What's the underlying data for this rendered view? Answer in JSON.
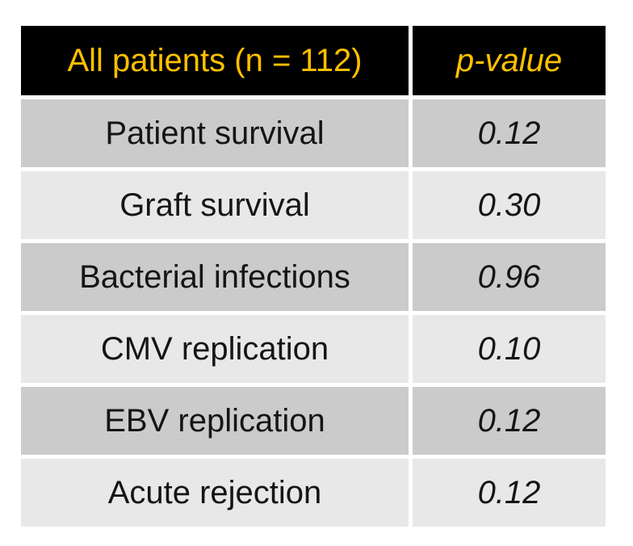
{
  "table": {
    "header": {
      "col1": "All patients (n = 112)",
      "col2": "p-value"
    },
    "rows": [
      {
        "label": "Patient survival",
        "p_value": "0.12"
      },
      {
        "label": "Graft survival",
        "p_value": "0.30"
      },
      {
        "label": "Bacterial infections",
        "p_value": "0.96"
      },
      {
        "label": "CMV replication",
        "p_value": "0.10"
      },
      {
        "label": "EBV replication",
        "p_value": "0.12"
      },
      {
        "label": "Acute rejection",
        "p_value": "0.12"
      }
    ]
  },
  "colors": {
    "header_bg": "#000000",
    "header_text": "#ffc000",
    "row_dark": "#cbcbcb",
    "row_light": "#e8e8e8",
    "body_text": "#151515"
  },
  "chart_data": {
    "type": "table",
    "title": "All patients (n = 112)",
    "columns": [
      "All patients (n = 112)",
      "p-value"
    ],
    "rows": [
      [
        "Patient survival",
        "0.12"
      ],
      [
        "Graft survival",
        "0.30"
      ],
      [
        "Bacterial infections",
        "0.96"
      ],
      [
        "CMV replication",
        "0.10"
      ],
      [
        "EBV replication",
        "0.12"
      ],
      [
        "Acute rejection",
        "0.12"
      ]
    ]
  }
}
